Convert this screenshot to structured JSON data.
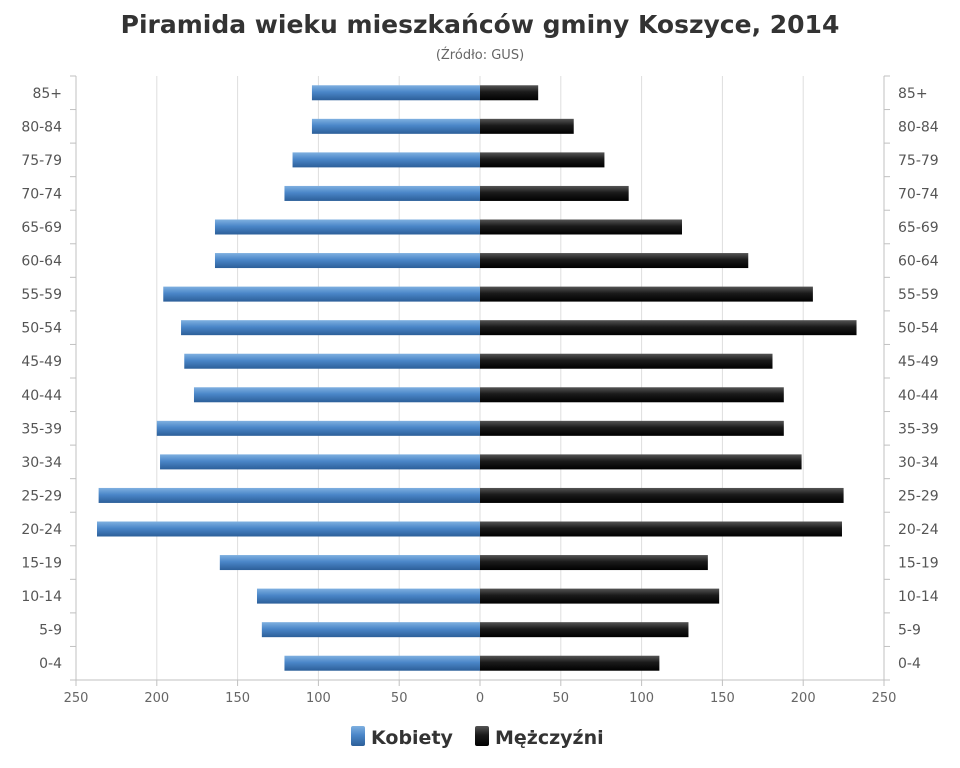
{
  "chart_data": {
    "type": "bar",
    "orientation": "horizontal-diverging",
    "title": "Piramida wieku mieszkańców gminy Koszyce, 2014",
    "subtitle": "(Źródło: GUS)",
    "categories": [
      "85+",
      "80-84",
      "75-79",
      "70-74",
      "65-69",
      "60-64",
      "55-59",
      "50-54",
      "45-49",
      "40-44",
      "35-39",
      "30-34",
      "25-29",
      "20-24",
      "15-19",
      "10-14",
      "5-9",
      "0-4"
    ],
    "series": [
      {
        "name": "Kobiety",
        "color": "#4a86c8",
        "side": "left",
        "values": [
          104,
          104,
          116,
          121,
          164,
          164,
          196,
          185,
          183,
          177,
          200,
          198,
          236,
          237,
          161,
          138,
          135,
          121
        ]
      },
      {
        "name": "Mężczyźni",
        "color": "#1a1a1a",
        "side": "right",
        "values": [
          36,
          58,
          77,
          92,
          125,
          166,
          206,
          233,
          181,
          188,
          188,
          199,
          225,
          224,
          141,
          148,
          129,
          111
        ]
      }
    ],
    "xlim": [
      -250,
      250
    ],
    "x_ticks": [
      "250",
      "200",
      "150",
      "100",
      "50",
      "0",
      "50",
      "100",
      "150",
      "200",
      "250"
    ],
    "legend": "bottom-center",
    "grid": true
  }
}
